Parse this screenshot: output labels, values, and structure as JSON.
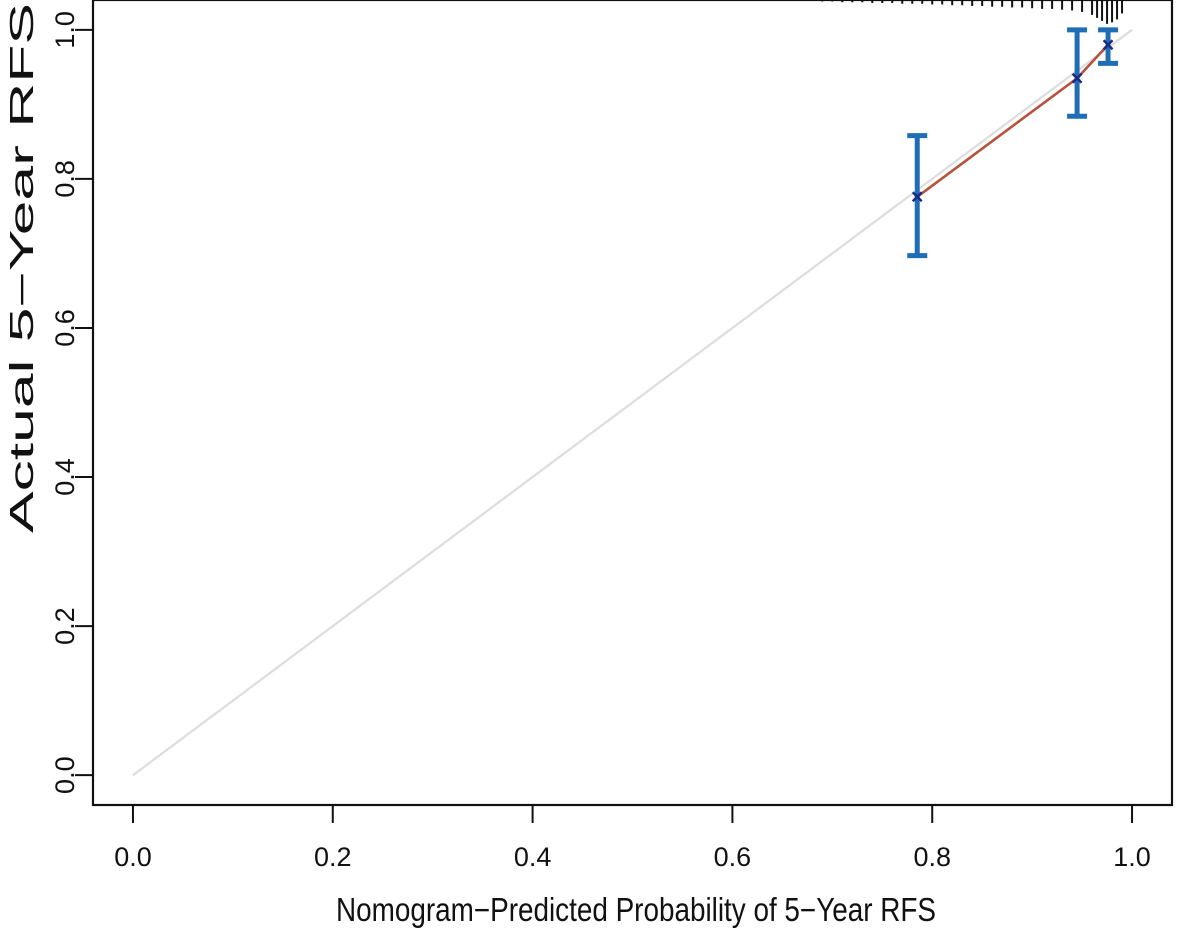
{
  "chart_data": {
    "type": "scatter",
    "title": "",
    "xlabel": "Nomogram−Predicted Probability of 5−Year RFS",
    "ylabel": "Actual 5−Year RFS",
    "xlim": [
      -0.04,
      1.04
    ],
    "ylim": [
      -0.04,
      1.04
    ],
    "x_ticks": [
      0.0,
      0.2,
      0.4,
      0.6,
      0.8,
      1.0
    ],
    "y_ticks": [
      0.0,
      0.2,
      0.4,
      0.6,
      0.8,
      1.0
    ],
    "x_tick_labels": [
      "0.0",
      "0.2",
      "0.4",
      "0.6",
      "0.8",
      "1.0"
    ],
    "y_tick_labels": [
      "0.0",
      "0.2",
      "0.4",
      "0.6",
      "0.8",
      "1.0"
    ],
    "grid": false,
    "reference_line": {
      "x": [
        0,
        1
      ],
      "y": [
        0,
        1
      ],
      "color": "#dddddd"
    },
    "series": [
      {
        "x": [
          0.785,
          0.945,
          0.976
        ],
        "y": [
          0.776,
          0.935,
          0.98
        ],
        "lower": [
          0.697,
          0.884,
          0.955
        ],
        "upper": [
          0.858,
          1.0,
          1.0
        ],
        "line_color": "#b5533c",
        "errorbar_color": "#1f6db5",
        "marker_color": "#1b2a80"
      }
    ],
    "rug_x": [
      0.69,
      0.7,
      0.71,
      0.72,
      0.73,
      0.74,
      0.75,
      0.76,
      0.77,
      0.78,
      0.79,
      0.8,
      0.81,
      0.82,
      0.83,
      0.84,
      0.85,
      0.86,
      0.87,
      0.88,
      0.89,
      0.9,
      0.91,
      0.92,
      0.93,
      0.94,
      0.95,
      0.96,
      0.965,
      0.97,
      0.975,
      0.98,
      0.985,
      0.99
    ],
    "rug_heights": [
      0.002,
      0.002,
      0.003,
      0.003,
      0.003,
      0.004,
      0.004,
      0.004,
      0.005,
      0.005,
      0.005,
      0.006,
      0.006,
      0.007,
      0.007,
      0.008,
      0.008,
      0.009,
      0.009,
      0.01,
      0.01,
      0.011,
      0.012,
      0.012,
      0.013,
      0.014,
      0.016,
      0.02,
      0.024,
      0.028,
      0.032,
      0.03,
      0.026,
      0.018
    ],
    "rug_color": "#111111"
  }
}
